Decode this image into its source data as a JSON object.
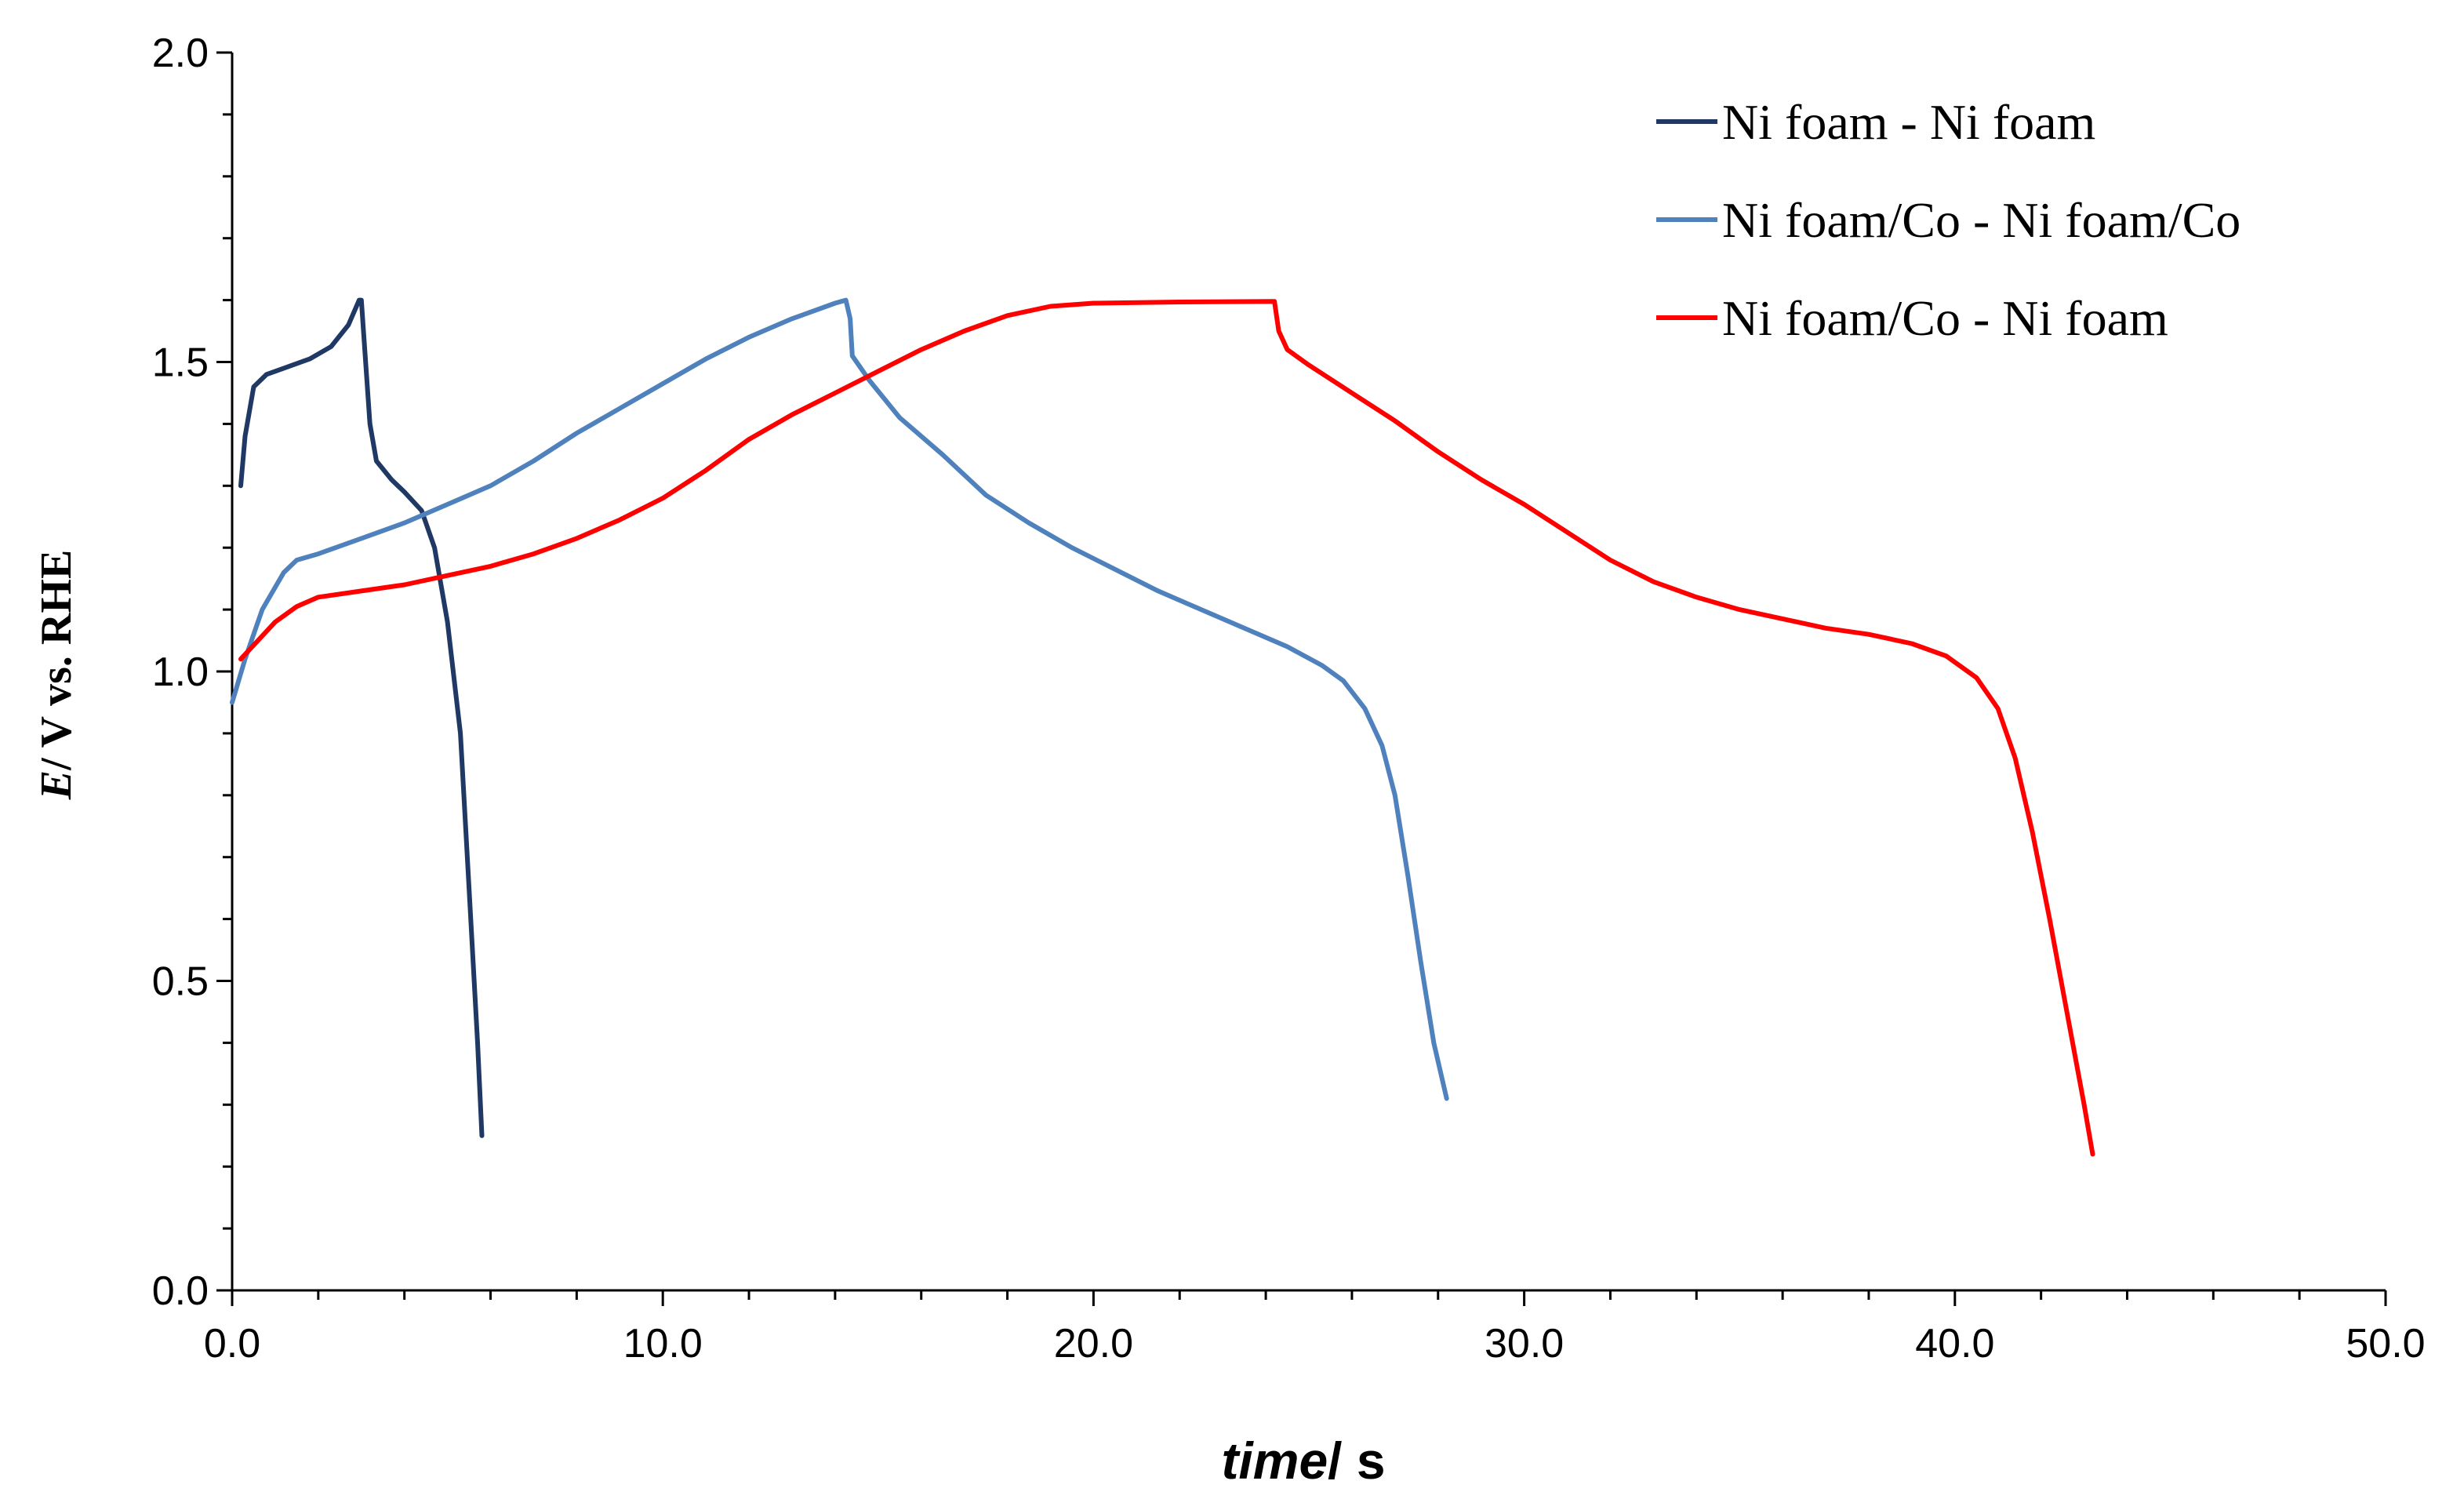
{
  "chart_data": {
    "type": "line",
    "title": "",
    "xlabel": {
      "italic_part": "time",
      "rest": "/ s"
    },
    "ylabel": {
      "italic_part": "E",
      "rest": "/ V vs. RHE"
    },
    "xlim": [
      0,
      50
    ],
    "ylim": [
      0,
      2
    ],
    "x_ticks": [
      0,
      10,
      20,
      30,
      40,
      50
    ],
    "x_tick_labels": [
      "0.0",
      "10.0",
      "20.0",
      "30.0",
      "40.0",
      "50.0"
    ],
    "y_ticks": [
      0,
      0.5,
      1.0,
      1.5,
      2.0
    ],
    "y_tick_labels": [
      "0.0",
      "0.5",
      "1.0",
      "1.5",
      "2.0"
    ],
    "x_minor_step": 2,
    "y_minor_step": 0.1,
    "grid": false,
    "legend_position": "top-right",
    "series": [
      {
        "name": "Ni foam - Ni foam",
        "color": "#1f3864",
        "points": [
          [
            0.2,
            1.3
          ],
          [
            0.3,
            1.38
          ],
          [
            0.5,
            1.46
          ],
          [
            0.8,
            1.48
          ],
          [
            1.2,
            1.49
          ],
          [
            1.8,
            1.505
          ],
          [
            2.3,
            1.525
          ],
          [
            2.7,
            1.56
          ],
          [
            2.95,
            1.6
          ],
          [
            3.0,
            1.6
          ],
          [
            3.05,
            1.55
          ],
          [
            3.2,
            1.4
          ],
          [
            3.35,
            1.34
          ],
          [
            3.7,
            1.31
          ],
          [
            4.0,
            1.29
          ],
          [
            4.4,
            1.26
          ],
          [
            4.7,
            1.2
          ],
          [
            5.0,
            1.08
          ],
          [
            5.3,
            0.9
          ],
          [
            5.5,
            0.65
          ],
          [
            5.7,
            0.4
          ],
          [
            5.8,
            0.25
          ]
        ]
      },
      {
        "name": "Ni foam/Co - Ni foam/Co",
        "color": "#4f81bd",
        "points": [
          [
            0.0,
            0.95
          ],
          [
            0.3,
            1.02
          ],
          [
            0.7,
            1.1
          ],
          [
            1.2,
            1.16
          ],
          [
            1.5,
            1.18
          ],
          [
            2.0,
            1.19
          ],
          [
            3.0,
            1.215
          ],
          [
            4.0,
            1.24
          ],
          [
            5.0,
            1.27
          ],
          [
            6.0,
            1.3
          ],
          [
            7.0,
            1.34
          ],
          [
            8.0,
            1.385
          ],
          [
            9.0,
            1.425
          ],
          [
            10.0,
            1.465
          ],
          [
            11.0,
            1.505
          ],
          [
            12.0,
            1.54
          ],
          [
            13.0,
            1.57
          ],
          [
            14.0,
            1.595
          ],
          [
            14.25,
            1.6
          ],
          [
            14.35,
            1.57
          ],
          [
            14.4,
            1.51
          ],
          [
            14.8,
            1.47
          ],
          [
            15.5,
            1.41
          ],
          [
            16.5,
            1.35
          ],
          [
            17.5,
            1.285
          ],
          [
            18.5,
            1.24
          ],
          [
            19.5,
            1.2
          ],
          [
            20.5,
            1.165
          ],
          [
            21.5,
            1.13
          ],
          [
            22.5,
            1.1
          ],
          [
            23.5,
            1.07
          ],
          [
            24.5,
            1.04
          ],
          [
            25.3,
            1.01
          ],
          [
            25.8,
            0.985
          ],
          [
            26.3,
            0.94
          ],
          [
            26.7,
            0.88
          ],
          [
            27.0,
            0.8
          ],
          [
            27.3,
            0.67
          ],
          [
            27.6,
            0.53
          ],
          [
            27.9,
            0.4
          ],
          [
            28.2,
            0.31
          ]
        ]
      },
      {
        "name": "Ni foam/Co - Ni foam",
        "color": "#ff0000",
        "points": [
          [
            0.2,
            1.02
          ],
          [
            0.6,
            1.05
          ],
          [
            1.0,
            1.08
          ],
          [
            1.5,
            1.105
          ],
          [
            2.0,
            1.12
          ],
          [
            3.0,
            1.13
          ],
          [
            4.0,
            1.14
          ],
          [
            5.0,
            1.155
          ],
          [
            6.0,
            1.17
          ],
          [
            7.0,
            1.19
          ],
          [
            8.0,
            1.215
          ],
          [
            9.0,
            1.245
          ],
          [
            10.0,
            1.28
          ],
          [
            11.0,
            1.325
          ],
          [
            12.0,
            1.375
          ],
          [
            13.0,
            1.415
          ],
          [
            14.0,
            1.45
          ],
          [
            15.0,
            1.485
          ],
          [
            16.0,
            1.52
          ],
          [
            17.0,
            1.55
          ],
          [
            18.0,
            1.575
          ],
          [
            19.0,
            1.59
          ],
          [
            20.0,
            1.595
          ],
          [
            22.0,
            1.597
          ],
          [
            24.2,
            1.598
          ],
          [
            24.3,
            1.55
          ],
          [
            24.5,
            1.52
          ],
          [
            25.0,
            1.495
          ],
          [
            26.0,
            1.45
          ],
          [
            27.0,
            1.405
          ],
          [
            28.0,
            1.355
          ],
          [
            29.0,
            1.31
          ],
          [
            30.0,
            1.27
          ],
          [
            31.0,
            1.225
          ],
          [
            32.0,
            1.18
          ],
          [
            33.0,
            1.145
          ],
          [
            34.0,
            1.12
          ],
          [
            35.0,
            1.1
          ],
          [
            36.0,
            1.085
          ],
          [
            37.0,
            1.07
          ],
          [
            38.0,
            1.06
          ],
          [
            39.0,
            1.045
          ],
          [
            39.8,
            1.025
          ],
          [
            40.5,
            0.99
          ],
          [
            41.0,
            0.94
          ],
          [
            41.4,
            0.86
          ],
          [
            41.8,
            0.74
          ],
          [
            42.2,
            0.6
          ],
          [
            42.6,
            0.45
          ],
          [
            43.0,
            0.3
          ],
          [
            43.2,
            0.22
          ]
        ]
      }
    ]
  }
}
